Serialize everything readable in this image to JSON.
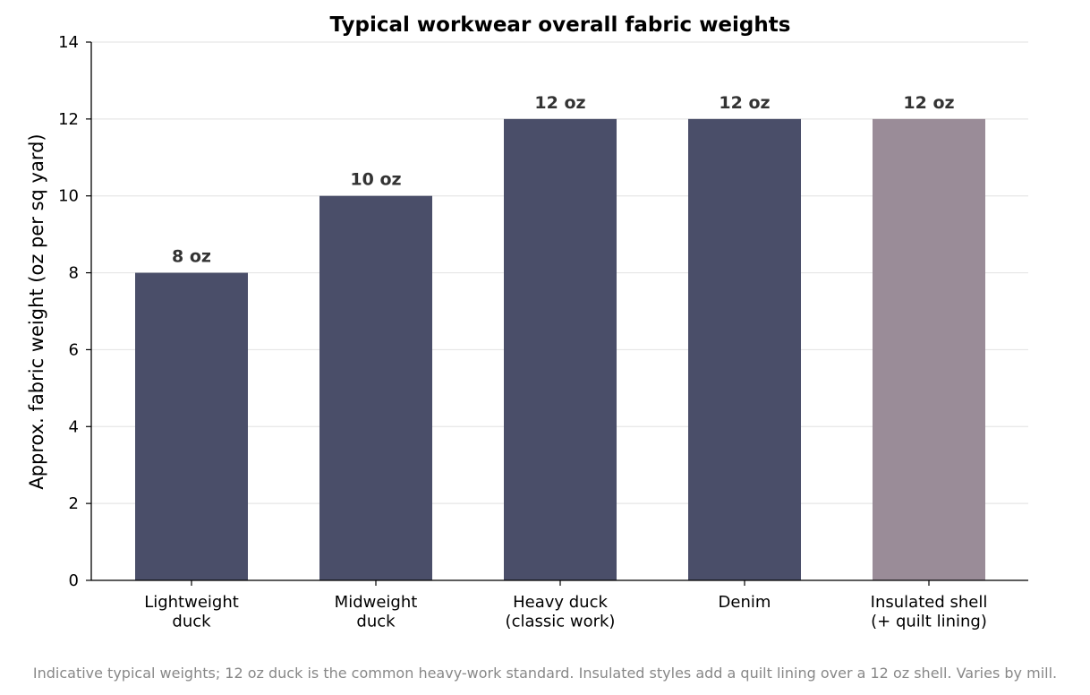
{
  "chart_data": {
    "type": "bar",
    "title": "Typical workwear overall fabric weights",
    "y_label": "Approx. fabric weight (oz per sq yard)",
    "categories": [
      "Lightweight\nduck",
      "Midweight\nduck",
      "Heavy duck\n(classic work)",
      "Denim",
      "Insulated shell\n(+ quilt lining)"
    ],
    "values": [
      8,
      10,
      12,
      12,
      12
    ],
    "value_labels": [
      "8 oz",
      "10 oz",
      "12 oz",
      "12 oz",
      "12 oz"
    ],
    "colors": [
      "#4a4e69",
      "#4a4e69",
      "#4a4e69",
      "#4a4e69",
      "#9a8c98"
    ],
    "ylim": [
      0,
      14
    ],
    "yticks": [
      0,
      2,
      4,
      6,
      8,
      10,
      12,
      14
    ],
    "grid": true,
    "footnote": "Indicative typical weights; 12 oz duck is the common heavy-work standard. Insulated styles add a quilt lining over a 12 oz shell. Varies by mill."
  }
}
